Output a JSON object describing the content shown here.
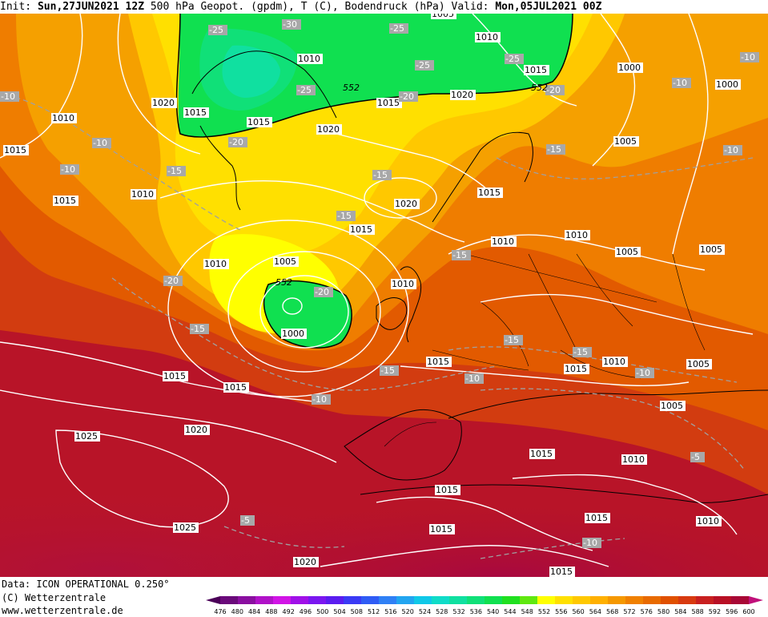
{
  "header": {
    "init_label": "Init:",
    "init_value": "Sun,27JUN2021 12Z",
    "description": "500 hPa Geopot. (gpdm), T (C), Bodendruck (hPa)",
    "valid_label": "Valid:",
    "valid_value": "Mon,05JUL2021 00Z"
  },
  "footer": {
    "data_source": "Data: ICON OPERATIONAL 0.250°",
    "copyright": "(C) Wetterzentrale",
    "website": "www.wetterzentrale.de"
  },
  "legend": {
    "values": [
      "476",
      "480",
      "484",
      "488",
      "492",
      "496",
      "500",
      "504",
      "508",
      "512",
      "516",
      "520",
      "524",
      "528",
      "532",
      "536",
      "540",
      "544",
      "548",
      "552",
      "556",
      "560",
      "564",
      "568",
      "572",
      "576",
      "580",
      "584",
      "588",
      "592",
      "596",
      "600"
    ],
    "colors": [
      "#4b0058",
      "#6a0a7a",
      "#8a0fa0",
      "#b012c8",
      "#d114e6",
      "#a010e8",
      "#7a16f0",
      "#5a1cf0",
      "#3a3af5",
      "#2f5cf5",
      "#2f80f5",
      "#22a5f0",
      "#10c8e8",
      "#10dcc8",
      "#10e0a0",
      "#10e078",
      "#10e050",
      "#20e020",
      "#60e810",
      "#ffff00",
      "#ffe000",
      "#ffc800",
      "#ffb000",
      "#f59800",
      "#f08000",
      "#e86a00",
      "#e05000",
      "#d83a10",
      "#c82020",
      "#b81025",
      "#a80835",
      "#c0107a"
    ]
  },
  "map": {
    "pressure_labels": [
      {
        "text": "1005"
      },
      {
        "text": "1010"
      },
      {
        "text": "1020"
      },
      {
        "text": "1015"
      },
      {
        "text": "1000"
      },
      {
        "text": "1000"
      },
      {
        "text": "1010"
      },
      {
        "text": "1015"
      },
      {
        "text": "1015"
      },
      {
        "text": "1020"
      },
      {
        "text": "1015"
      },
      {
        "text": "1020"
      },
      {
        "text": "1005"
      },
      {
        "text": "1010"
      },
      {
        "text": "1015"
      },
      {
        "text": "1010"
      },
      {
        "text": "1005"
      },
      {
        "text": "1015"
      },
      {
        "text": "1010"
      },
      {
        "text": "1020"
      },
      {
        "text": "1015"
      },
      {
        "text": "1010"
      },
      {
        "text": "1010"
      },
      {
        "text": "1005"
      },
      {
        "text": "1005"
      },
      {
        "text": "1000"
      },
      {
        "text": "1010"
      },
      {
        "text": "1015"
      },
      {
        "text": "1015"
      },
      {
        "text": "1010"
      },
      {
        "text": "1005"
      },
      {
        "text": "1025"
      },
      {
        "text": "1020"
      },
      {
        "text": "1015"
      },
      {
        "text": "1015"
      },
      {
        "text": "1010"
      },
      {
        "text": "1025"
      },
      {
        "text": "1015"
      },
      {
        "text": "1010"
      },
      {
        "text": "1020"
      },
      {
        "text": "1015"
      },
      {
        "text": "1015"
      },
      {
        "text": "1005"
      },
      {
        "text": "1015"
      },
      {
        "text": "1010"
      },
      {
        "text": "1015"
      },
      {
        "text": "1015"
      }
    ],
    "temp_labels": [
      {
        "text": "-25"
      },
      {
        "text": "-30"
      },
      {
        "text": "-25"
      },
      {
        "text": "-25"
      },
      {
        "text": "-25"
      },
      {
        "text": "-25"
      },
      {
        "text": "-20"
      },
      {
        "text": "-20"
      },
      {
        "text": "-10"
      },
      {
        "text": "-10"
      },
      {
        "text": "-10"
      },
      {
        "text": "-10"
      },
      {
        "text": "-10"
      },
      {
        "text": "-15"
      },
      {
        "text": "-20"
      },
      {
        "text": "-15"
      },
      {
        "text": "-15"
      },
      {
        "text": "-15"
      },
      {
        "text": "-15"
      },
      {
        "text": "-20"
      },
      {
        "text": "-20"
      },
      {
        "text": "-15"
      },
      {
        "text": "-15"
      },
      {
        "text": "-15"
      },
      {
        "text": "-15"
      },
      {
        "text": "-10"
      },
      {
        "text": "-10"
      },
      {
        "text": "-10"
      },
      {
        "text": "-10"
      },
      {
        "text": "-5"
      },
      {
        "text": "-5"
      },
      {
        "text": "-10"
      }
    ],
    "geopot_labels": [
      {
        "text": "552"
      },
      {
        "text": "552"
      },
      {
        "text": "552"
      }
    ]
  }
}
